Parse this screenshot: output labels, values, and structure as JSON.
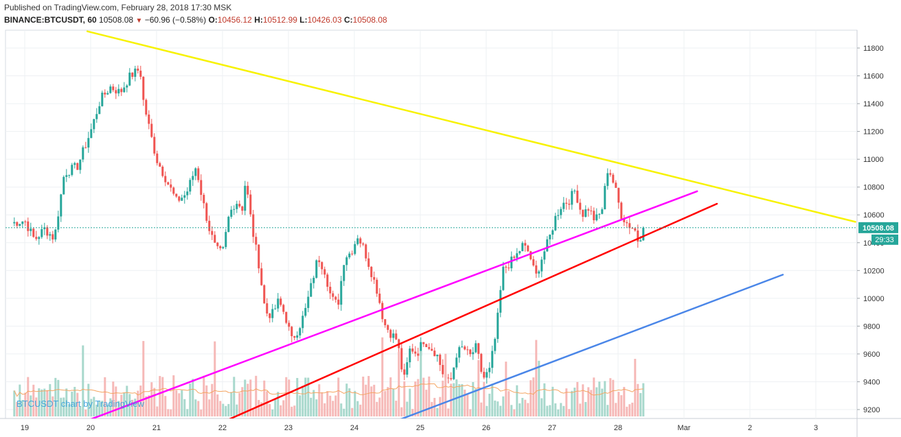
{
  "header": {
    "published": "Published on TradingView.com, February 28, 2018 17:30 MSK",
    "symbol": "BINANCE:BTCUSDT, 60",
    "last": "10508.08",
    "change": "−60.96 (−0.58%)",
    "o_label": "O:",
    "o_value": "10456.12",
    "h_label": "H:",
    "h_value": "10512.99",
    "l_label": "L:",
    "l_value": "10426.03",
    "c_label": "C:",
    "c_value": "10508.08"
  },
  "watermark": "BTCUSDT chart by TradingView",
  "price_tag": {
    "price": "10508.08",
    "countdown": "29:33",
    "color": "#26a69a"
  },
  "colors": {
    "up": "#26a69a",
    "down": "#ef5350",
    "vol_up": "#a8d8cc",
    "vol_down": "#f6b8b7",
    "ma": "#f4a460",
    "line_yellow": "#f7f200",
    "line_magenta": "#ff00ff",
    "line_red": "#ff0000",
    "line_blue": "#4a86e8",
    "grid": "#eef0f3"
  },
  "chart_data": {
    "type": "candlestick",
    "symbol": "BINANCE:BTCUSDT",
    "timeframe": "60",
    "x_ticks": [
      "19",
      "20",
      "21",
      "22",
      "23",
      "24",
      "25",
      "26",
      "27",
      "28",
      "Mar",
      "2",
      "3"
    ],
    "y_ticks": [
      9200,
      9400,
      9600,
      9800,
      10000,
      10200,
      10400,
      10600,
      10800,
      11000,
      11200,
      11400,
      11600,
      11800
    ],
    "ylim": [
      9130,
      11900
    ],
    "last_price": 10508.08,
    "ohlc_last": {
      "open": 10456.12,
      "high": 10512.99,
      "low": 10426.03,
      "close": 10508.08
    },
    "close_anchors": [
      [
        -0.2,
        10540
      ],
      [
        0.0,
        10560
      ],
      [
        0.15,
        10420
      ],
      [
        0.3,
        10500
      ],
      [
        0.45,
        10430
      ],
      [
        0.6,
        10900
      ],
      [
        0.8,
        10950
      ],
      [
        1.0,
        11200
      ],
      [
        1.15,
        11430
      ],
      [
        1.3,
        11520
      ],
      [
        1.45,
        11480
      ],
      [
        1.6,
        11600
      ],
      [
        1.75,
        11650
      ],
      [
        1.8,
        11420
      ],
      [
        1.9,
        11200
      ],
      [
        2.0,
        11000
      ],
      [
        2.15,
        10850
      ],
      [
        2.3,
        10700
      ],
      [
        2.45,
        10750
      ],
      [
        2.6,
        10950
      ],
      [
        2.7,
        10700
      ],
      [
        2.8,
        10500
      ],
      [
        2.9,
        10350
      ],
      [
        3.0,
        10320
      ],
      [
        3.1,
        10600
      ],
      [
        3.2,
        10700
      ],
      [
        3.3,
        10650
      ],
      [
        3.35,
        10850
      ],
      [
        3.45,
        10500
      ],
      [
        3.55,
        10250
      ],
      [
        3.65,
        9900
      ],
      [
        3.75,
        9880
      ],
      [
        3.85,
        9980
      ],
      [
        3.95,
        9880
      ],
      [
        4.05,
        9700
      ],
      [
        4.15,
        9780
      ],
      [
        4.25,
        9900
      ],
      [
        4.35,
        10100
      ],
      [
        4.45,
        10300
      ],
      [
        4.55,
        10200
      ],
      [
        4.65,
        10000
      ],
      [
        4.75,
        9950
      ],
      [
        4.85,
        10300
      ],
      [
        4.95,
        10330
      ],
      [
        5.05,
        10450
      ],
      [
        5.15,
        10350
      ],
      [
        5.25,
        10200
      ],
      [
        5.35,
        10050
      ],
      [
        5.45,
        9820
      ],
      [
        5.55,
        9750
      ],
      [
        5.65,
        9700
      ],
      [
        5.75,
        9400
      ],
      [
        5.85,
        9650
      ],
      [
        5.95,
        9600
      ],
      [
        6.05,
        9700
      ],
      [
        6.15,
        9650
      ],
      [
        6.25,
        9600
      ],
      [
        6.35,
        9450
      ],
      [
        6.45,
        9380
      ],
      [
        6.55,
        9600
      ],
      [
        6.65,
        9650
      ],
      [
        6.75,
        9580
      ],
      [
        6.85,
        9650
      ],
      [
        6.95,
        9420
      ],
      [
        7.05,
        9480
      ],
      [
        7.15,
        9750
      ],
      [
        7.25,
        10200
      ],
      [
        7.35,
        10250
      ],
      [
        7.45,
        10300
      ],
      [
        7.55,
        10380
      ],
      [
        7.65,
        10330
      ],
      [
        7.75,
        10150
      ],
      [
        7.85,
        10300
      ],
      [
        7.95,
        10420
      ],
      [
        8.05,
        10580
      ],
      [
        8.15,
        10680
      ],
      [
        8.25,
        10700
      ],
      [
        8.35,
        10780
      ],
      [
        8.45,
        10600
      ],
      [
        8.55,
        10650
      ],
      [
        8.65,
        10560
      ],
      [
        8.75,
        10620
      ],
      [
        8.85,
        10950
      ],
      [
        8.95,
        10800
      ],
      [
        9.05,
        10600
      ],
      [
        9.15,
        10530
      ],
      [
        9.25,
        10500
      ],
      [
        9.3,
        10420
      ],
      [
        9.35,
        10456
      ],
      [
        9.4,
        10508
      ]
    ],
    "trendlines": [
      {
        "name": "yellow",
        "color": "#f7f200",
        "p1": [
          0.95,
          11920
        ],
        "p2": [
          12.6,
          10550
        ]
      },
      {
        "name": "magenta",
        "color": "#ff00ff",
        "p1": [
          1.0,
          9130
        ],
        "p2": [
          10.2,
          10770
        ]
      },
      {
        "name": "red",
        "color": "#ff0000",
        "p1": [
          3.1,
          9130
        ],
        "p2": [
          10.5,
          10680
        ]
      },
      {
        "name": "blue",
        "color": "#4a86e8",
        "p1": [
          5.7,
          9130
        ],
        "p2": [
          11.5,
          10170
        ]
      }
    ]
  }
}
